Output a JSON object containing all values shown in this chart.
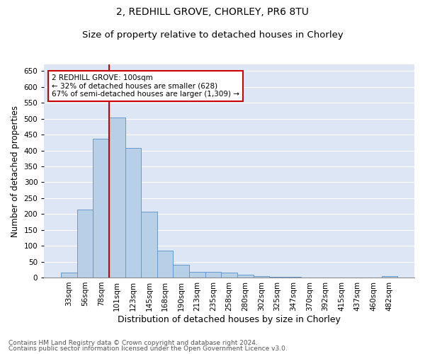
{
  "title1": "2, REDHILL GROVE, CHORLEY, PR6 8TU",
  "title2": "Size of property relative to detached houses in Chorley",
  "xlabel": "Distribution of detached houses by size in Chorley",
  "ylabel": "Number of detached properties",
  "categories": [
    "33sqm",
    "56sqm",
    "78sqm",
    "101sqm",
    "123sqm",
    "145sqm",
    "168sqm",
    "190sqm",
    "213sqm",
    "235sqm",
    "258sqm",
    "280sqm",
    "302sqm",
    "325sqm",
    "347sqm",
    "370sqm",
    "392sqm",
    "415sqm",
    "437sqm",
    "460sqm",
    "482sqm"
  ],
  "values": [
    15,
    213,
    437,
    503,
    407,
    207,
    85,
    40,
    18,
    18,
    15,
    8,
    5,
    2,
    2,
    1,
    1,
    1,
    0,
    0,
    5
  ],
  "bar_color": "#b8cfe8",
  "bar_edgecolor": "#6699cc",
  "background_color": "#dce6f5",
  "annotation_box_color": "#cc0000",
  "property_label": "2 REDHILL GROVE: 100sqm",
  "smaller_pct": 32,
  "smaller_count": 628,
  "larger_pct": 67,
  "larger_count": "1,309",
  "vline_x_index": 3,
  "ylim": [
    0,
    670
  ],
  "yticks": [
    0,
    50,
    100,
    150,
    200,
    250,
    300,
    350,
    400,
    450,
    500,
    550,
    600,
    650
  ],
  "footer1": "Contains HM Land Registry data © Crown copyright and database right 2024.",
  "footer2": "Contains public sector information licensed under the Open Government Licence v3.0.",
  "title1_fontsize": 10,
  "title2_fontsize": 9.5,
  "xlabel_fontsize": 9,
  "ylabel_fontsize": 8.5,
  "tick_fontsize": 7.5,
  "annotation_fontsize": 7.5,
  "footer_fontsize": 6.5
}
